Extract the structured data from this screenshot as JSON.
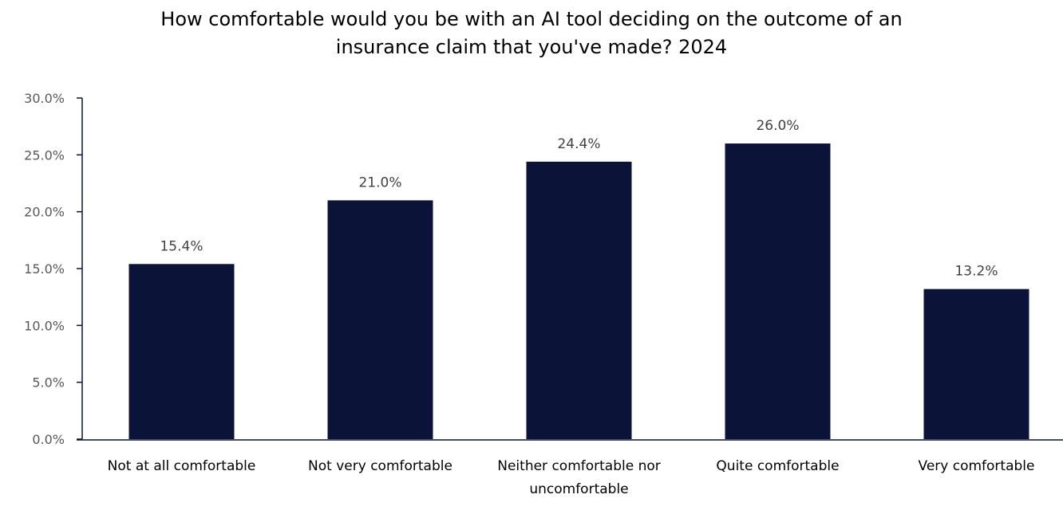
{
  "chart_data": {
    "type": "bar",
    "title": [
      "How comfortable would you be with an AI tool deciding on the outcome of an",
      "insurance claim that you've made? 2024"
    ],
    "xlabel": "",
    "ylabel": "",
    "categories": [
      [
        "Not at all comfortable"
      ],
      [
        "Not very comfortable"
      ],
      [
        "Neither comfortable nor",
        "uncomfortable"
      ],
      [
        "Quite comfortable"
      ],
      [
        "Very comfortable"
      ]
    ],
    "values": [
      15.4,
      21.0,
      24.4,
      26.0,
      13.2
    ],
    "data_labels": [
      "15.4%",
      "21.0%",
      "24.4%",
      "26.0%",
      "13.2%"
    ],
    "ylim": [
      0,
      30
    ],
    "yticks": [
      0,
      5,
      10,
      15,
      20,
      25,
      30
    ],
    "ytick_labels": [
      "0.0%",
      "5.0%",
      "10.0%",
      "15.0%",
      "20.0%",
      "25.0%",
      "30.0%"
    ],
    "grid": false,
    "legend": "none",
    "colors": {
      "bar": "#0c1338",
      "axis": "#0c1338"
    }
  }
}
